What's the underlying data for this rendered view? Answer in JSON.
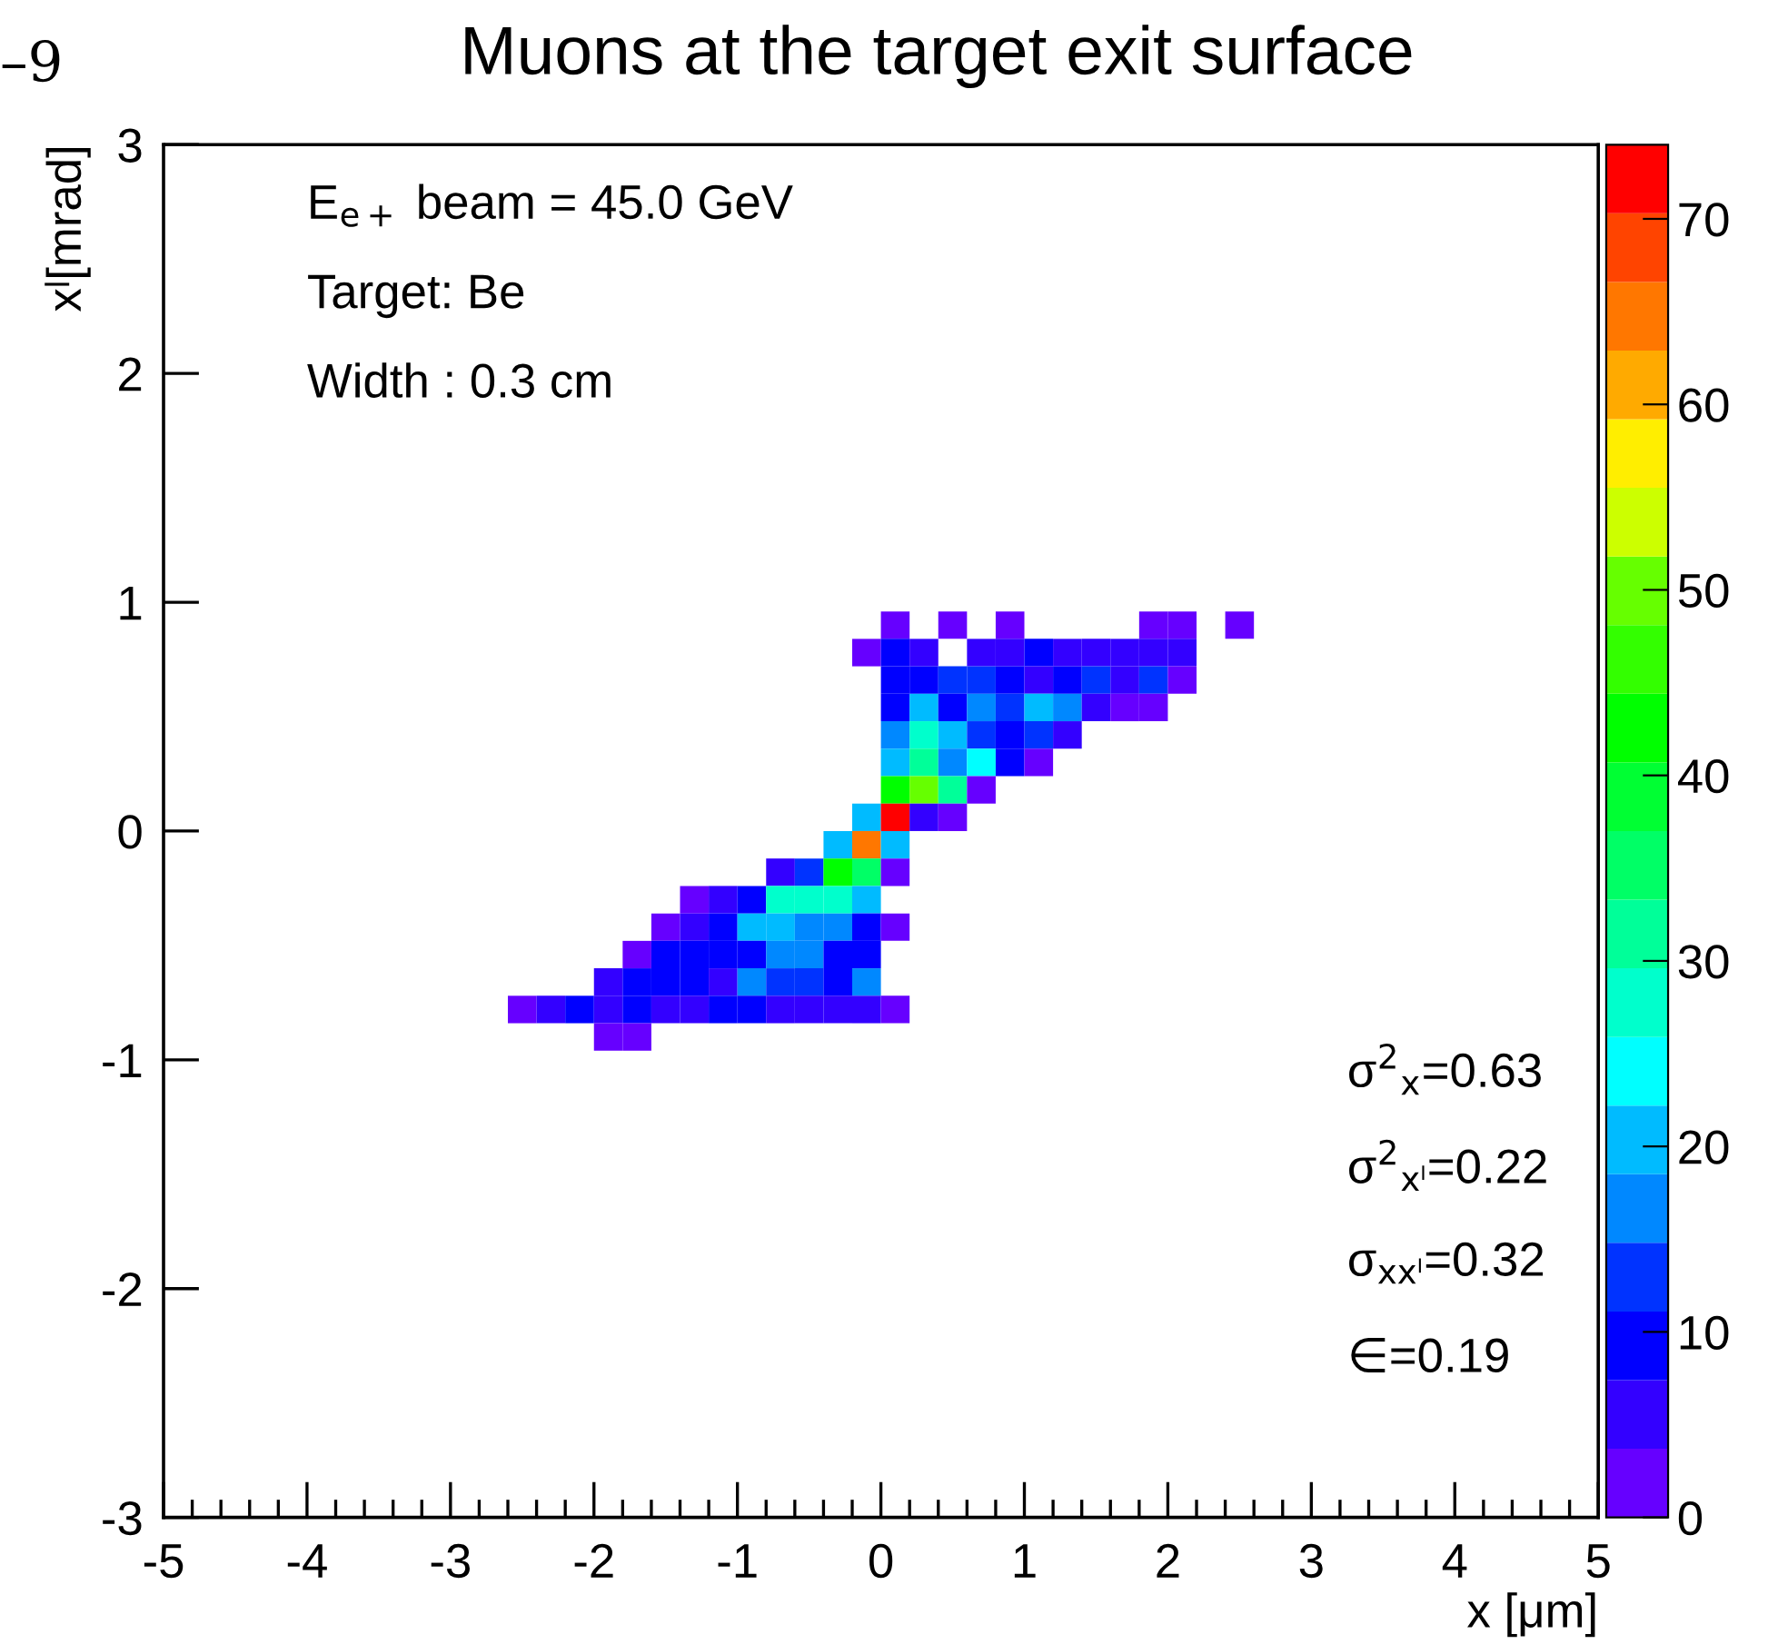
{
  "chart_data": {
    "type": "heatmap",
    "title": "Muons at the target exit surface",
    "xlabel": "x [μm]",
    "ylabel": "xˡ[mrad]",
    "x": [
      -2.5,
      -2.3,
      -2.1,
      -1.9,
      -1.7,
      -1.5,
      -1.3,
      -1.1,
      -0.9,
      -0.7,
      -0.5,
      -0.3,
      -0.1,
      0.1,
      0.3,
      0.5,
      0.7,
      0.9,
      1.1,
      1.3,
      1.5,
      1.7,
      1.9,
      2.1,
      2.3,
      2.5
    ],
    "y": [
      0.9,
      0.78,
      0.66,
      0.54,
      0.42,
      0.3,
      0.18,
      0.06,
      -0.06,
      -0.18,
      -0.3,
      -0.42,
      -0.54,
      -0.66,
      -0.78,
      -0.9
    ],
    "cells": [
      [
        null,
        null,
        null,
        null,
        null,
        null,
        null,
        null,
        null,
        null,
        null,
        null,
        null,
        2,
        null,
        2,
        null,
        2,
        null,
        null,
        null,
        null,
        2,
        2,
        null,
        2
      ],
      [
        null,
        null,
        null,
        null,
        null,
        null,
        null,
        null,
        null,
        null,
        null,
        null,
        2,
        9,
        5,
        null,
        5,
        5,
        9,
        5,
        5,
        5,
        5,
        5,
        null,
        null
      ],
      [
        null,
        null,
        null,
        null,
        null,
        null,
        null,
        null,
        null,
        null,
        null,
        null,
        null,
        9,
        9,
        13,
        13,
        9,
        5,
        9,
        13,
        5,
        13,
        2,
        null,
        null
      ],
      [
        null,
        null,
        null,
        null,
        null,
        null,
        null,
        null,
        null,
        null,
        null,
        null,
        null,
        9,
        20,
        9,
        17,
        13,
        20,
        17,
        5,
        2,
        2,
        null,
        null,
        null
      ],
      [
        null,
        null,
        null,
        null,
        null,
        null,
        null,
        null,
        null,
        null,
        null,
        null,
        null,
        17,
        28,
        20,
        13,
        9,
        13,
        5,
        null,
        null,
        null,
        null,
        null,
        null
      ],
      [
        null,
        null,
        null,
        null,
        null,
        null,
        null,
        null,
        null,
        null,
        null,
        null,
        null,
        20,
        32,
        17,
        24,
        9,
        2,
        null,
        null,
        null,
        null,
        null,
        null,
        null
      ],
      [
        null,
        null,
        null,
        null,
        null,
        null,
        null,
        null,
        null,
        null,
        null,
        null,
        null,
        42,
        50,
        32,
        2,
        null,
        null,
        null,
        null,
        null,
        null,
        null,
        null,
        null
      ],
      [
        null,
        null,
        null,
        null,
        null,
        null,
        null,
        null,
        null,
        null,
        null,
        null,
        20,
        72,
        5,
        2,
        null,
        null,
        null,
        null,
        null,
        null,
        null,
        null,
        null,
        null
      ],
      [
        null,
        null,
        null,
        null,
        null,
        null,
        null,
        null,
        null,
        null,
        null,
        20,
        65,
        20,
        null,
        null,
        null,
        null,
        null,
        null,
        null,
        null,
        null,
        null,
        null,
        null
      ],
      [
        null,
        null,
        null,
        null,
        null,
        null,
        null,
        null,
        null,
        5,
        13,
        42,
        35,
        2,
        null,
        null,
        null,
        null,
        null,
        null,
        null,
        null,
        null,
        null,
        null,
        null
      ],
      [
        null,
        null,
        null,
        null,
        null,
        null,
        2,
        5,
        9,
        28,
        28,
        28,
        20,
        null,
        null,
        null,
        null,
        null,
        null,
        null,
        null,
        null,
        null,
        null,
        null,
        null
      ],
      [
        null,
        null,
        null,
        null,
        null,
        2,
        5,
        9,
        20,
        20,
        17,
        17,
        9,
        2,
        null,
        null,
        null,
        null,
        null,
        null,
        null,
        null,
        null,
        null,
        null,
        null
      ],
      [
        null,
        null,
        null,
        null,
        2,
        9,
        9,
        9,
        9,
        17,
        17,
        9,
        9,
        null,
        null,
        null,
        null,
        null,
        null,
        null,
        null,
        null,
        null,
        null,
        null,
        null
      ],
      [
        null,
        null,
        null,
        5,
        9,
        9,
        9,
        5,
        17,
        13,
        13,
        9,
        17,
        null,
        null,
        null,
        null,
        null,
        null,
        null,
        null,
        null,
        null,
        null,
        null,
        null
      ],
      [
        2,
        5,
        9,
        5,
        9,
        5,
        5,
        9,
        9,
        5,
        5,
        5,
        5,
        2,
        null,
        null,
        null,
        null,
        null,
        null,
        null,
        null,
        null,
        null,
        null,
        null
      ],
      [
        null,
        null,
        null,
        2,
        2,
        null,
        null,
        null,
        null,
        null,
        null,
        null,
        null,
        null,
        null,
        null,
        null,
        null,
        null,
        null,
        null,
        null,
        null,
        null,
        null,
        null
      ]
    ],
    "xlim": [
      -5,
      5
    ],
    "ylim": [
      -3,
      3
    ],
    "xticks": [
      -5,
      -4,
      -3,
      -2,
      -1,
      0,
      1,
      2,
      3,
      4,
      5
    ],
    "yticks": [
      -3,
      -2,
      -1,
      0,
      1,
      2,
      3
    ],
    "clim": [
      0,
      74
    ],
    "cticks": [
      0,
      10,
      20,
      30,
      40,
      50,
      60,
      70
    ],
    "annotations": [
      "–9",
      "E$_{e+}$ beam = 45.0 GeV",
      "Target: Be",
      "Width : 0.3 cm",
      "σ$^{2}$$_{x}$=0.63",
      "σ$^{2}$$_{xˡ}$=0.22",
      "σ$_{xxˡ}$=0.32",
      "∈=0.19"
    ]
  }
}
